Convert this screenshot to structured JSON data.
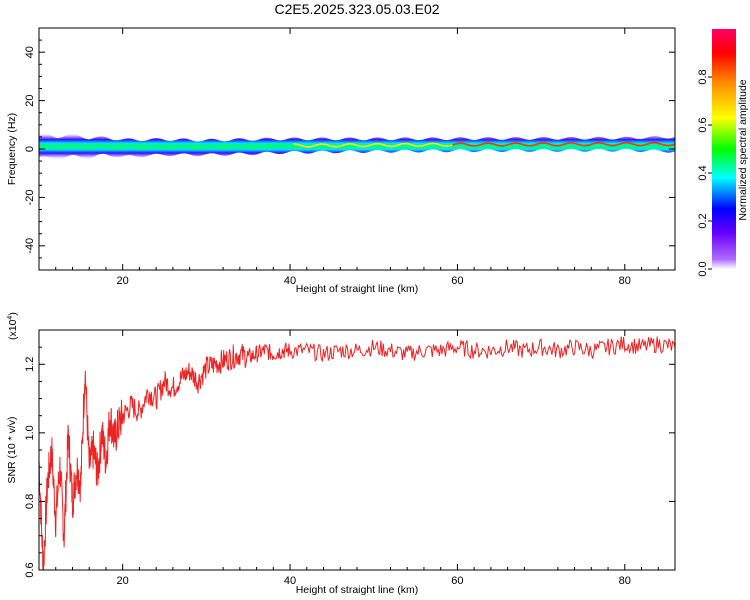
{
  "figure": {
    "title": "C2E5.2025.323.05.03.E02"
  },
  "chart_data": [
    {
      "type": "heatmap",
      "title": "C2E5.2025.323.05.03.E02",
      "xlabel": "Height of straight line (km)",
      "ylabel": "Frequency (Hz)",
      "xlim": [
        10,
        86
      ],
      "ylim": [
        -50,
        50
      ],
      "xticks": [
        20,
        40,
        60,
        80
      ],
      "yticks": [
        40,
        20,
        0,
        -20,
        -40
      ],
      "ridge": {
        "description_free": true,
        "x": [
          10,
          12,
          14,
          16,
          18,
          20,
          25,
          30,
          35,
          40,
          50,
          60,
          70,
          80,
          86
        ],
        "center_hz": [
          1.5,
          0.5,
          1.5,
          0.5,
          1.2,
          0.3,
          0.8,
          0.6,
          1.0,
          1.4,
          1.6,
          1.8,
          1.9,
          2.0,
          2.0
        ],
        "halfwidth_hz": [
          5,
          4.5,
          4.5,
          4,
          3.5,
          3.5,
          3.2,
          3,
          3,
          2.8,
          2.6,
          2.5,
          2.5,
          2.5,
          3
        ]
      },
      "colorbar": {
        "label": "Normalized spectral amplitude",
        "range": [
          0,
          1
        ],
        "ticks": [
          "0.0",
          "0.2",
          "0.4",
          "0.6",
          "0.8"
        ],
        "colors": [
          "#ffffff",
          "#8800ff",
          "#0000ff",
          "#00ffff",
          "#00ff00",
          "#ffff00",
          "#ff8800",
          "#ff0000",
          "#ff0088"
        ]
      }
    },
    {
      "type": "line",
      "xlabel": "Height of straight line (km)",
      "ylabel": "SNR (10 * v/v)",
      "multiplier": "(x10",
      "multiplier_exp": "4",
      "xlim": [
        10,
        86
      ],
      "ylim": [
        0.6,
        1.3
      ],
      "xticks": [
        20,
        40,
        60,
        80
      ],
      "yticks": [
        "1.2",
        "1.0",
        "0.8",
        "0.6"
      ],
      "color": "#ee2222",
      "series": [
        {
          "x": [
            10,
            10.5,
            11,
            11.5,
            12,
            12.5,
            13,
            13.5,
            14,
            14.5,
            15,
            15.5,
            16,
            16.5,
            17,
            17.5,
            18,
            18.5,
            19,
            19.5,
            20,
            21,
            22,
            23,
            24,
            25,
            26,
            27,
            28,
            29,
            30,
            31,
            32,
            33,
            34,
            35,
            36,
            37,
            38,
            39,
            40,
            42,
            44,
            46,
            48,
            50,
            52,
            54,
            56,
            58,
            60,
            62,
            64,
            66,
            68,
            70,
            72,
            74,
            76,
            78,
            80,
            82,
            84,
            86
          ],
          "y": [
            0.92,
            0.6,
            0.85,
            0.95,
            0.75,
            0.9,
            0.7,
            1.0,
            0.8,
            0.9,
            0.85,
            1.19,
            0.9,
            0.95,
            0.88,
            1.0,
            0.92,
            1.05,
            0.98,
            1.02,
            1.05,
            1.08,
            1.06,
            1.12,
            1.1,
            1.15,
            1.13,
            1.16,
            1.18,
            1.15,
            1.19,
            1.2,
            1.21,
            1.22,
            1.23,
            1.22,
            1.23,
            1.24,
            1.23,
            1.24,
            1.24,
            1.24,
            1.23,
            1.24,
            1.24,
            1.25,
            1.24,
            1.23,
            1.24,
            1.24,
            1.25,
            1.24,
            1.24,
            1.25,
            1.24,
            1.25,
            1.24,
            1.25,
            1.24,
            1.25,
            1.26,
            1.25,
            1.26,
            1.25
          ]
        }
      ]
    }
  ]
}
